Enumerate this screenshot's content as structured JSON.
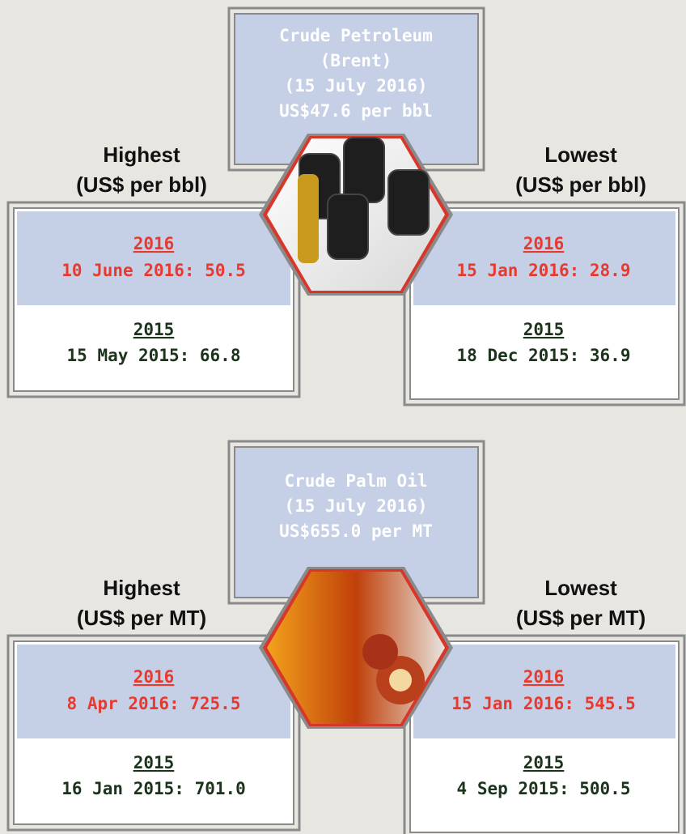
{
  "panels": [
    {
      "center": [
        "Crude Petroleum",
        "(Brent)",
        "(15 July 2016)",
        "US$47.6 per bbl"
      ],
      "highest_label": [
        "Highest",
        "(US$ per bbl)"
      ],
      "lowest_label": [
        "Lowest",
        "(US$ per bbl)"
      ],
      "highest": {
        "year_2016": "2016",
        "value_2016": "10 June 2016: 50.5",
        "year_2015": "2015",
        "value_2015": "15 May 2015: 66.8"
      },
      "lowest": {
        "year_2016": "2016",
        "value_2016": "15 Jan 2016: 28.9",
        "year_2015": "2015",
        "value_2015": "18 Dec 2015: 36.9"
      }
    },
    {
      "center": [
        "Crude Palm Oil",
        "(15 July 2016)",
        "US$655.0 per MT"
      ],
      "highest_label": [
        "Highest",
        "(US$ per MT)"
      ],
      "lowest_label": [
        "Lowest",
        "(US$ per MT)"
      ],
      "highest": {
        "year_2016": "2016",
        "value_2016": "8 Apr 2016: 725.5",
        "year_2015": "2015",
        "value_2015": "16 Jan 2015: 701.0"
      },
      "lowest": {
        "year_2016": "2016",
        "value_2016": "15 Jan 2016: 545.5",
        "year_2015": "2015",
        "value_2015": "4 Sep 2015: 500.5"
      }
    }
  ]
}
